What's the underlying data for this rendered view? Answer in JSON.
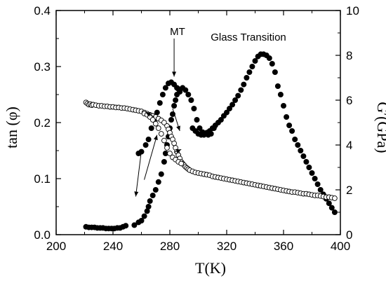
{
  "chart_data": {
    "type": "scatter",
    "xlabel": "T(K)",
    "ylabel_left": "tan (φ)",
    "ylabel_right": "G′(GPa)",
    "xlim": [
      200,
      400
    ],
    "ylim_left": [
      0,
      0.4
    ],
    "ylim_right": [
      0,
      10
    ],
    "xticks": [
      "200",
      "240",
      "280",
      "320",
      "360",
      "400"
    ],
    "yticks_left": [
      "0.0",
      "0.1",
      "0.2",
      "0.3",
      "0.4"
    ],
    "yticks_right": [
      "0",
      "2",
      "4",
      "6",
      "8",
      "10"
    ],
    "annotations": [
      {
        "text": "MT",
        "x": 283,
        "y": 0.35
      },
      {
        "text": "Glass Transition",
        "x": 290,
        "y": 0.345
      }
    ],
    "series": [
      {
        "marker": "filled-circle",
        "axis": "left",
        "points": [
          [
            221,
            0.014
          ],
          [
            223,
            0.013
          ],
          [
            225,
            0.013
          ],
          [
            227,
            0.013
          ],
          [
            229,
            0.012
          ],
          [
            231,
            0.012
          ],
          [
            233,
            0.012
          ],
          [
            235,
            0.011
          ],
          [
            237,
            0.011
          ],
          [
            239,
            0.011
          ],
          [
            241,
            0.011
          ],
          [
            243,
            0.012
          ],
          [
            245,
            0.012
          ],
          [
            247,
            0.014
          ],
          [
            249,
            0.016
          ],
          [
            255,
            0.017
          ],
          [
            258,
            0.022
          ],
          [
            260,
            0.025
          ],
          [
            262,
            0.033
          ],
          [
            264,
            0.042
          ],
          [
            265,
            0.05
          ],
          [
            266,
            0.06
          ],
          [
            268,
            0.07
          ],
          [
            270,
            0.08
          ],
          [
            272,
            0.094
          ],
          [
            274,
            0.108
          ],
          [
            276,
            0.13
          ],
          [
            277,
            0.145
          ],
          [
            278,
            0.16
          ],
          [
            279,
            0.175
          ],
          [
            280,
            0.19
          ],
          [
            281,
            0.205
          ],
          [
            282,
            0.215
          ],
          [
            283,
            0.23
          ],
          [
            284,
            0.24
          ],
          [
            285,
            0.25
          ],
          [
            286,
            0.26
          ],
          [
            258,
            0.145
          ],
          [
            260,
            0.148
          ],
          [
            263,
            0.16
          ],
          [
            265,
            0.17
          ],
          [
            267,
            0.19
          ],
          [
            269,
            0.205
          ],
          [
            271,
            0.218
          ],
          [
            273,
            0.235
          ],
          [
            275,
            0.25
          ],
          [
            277,
            0.262
          ],
          [
            279,
            0.27
          ],
          [
            281,
            0.272
          ],
          [
            283,
            0.268
          ],
          [
            285,
            0.262
          ],
          [
            287,
            0.255
          ],
          [
            289,
            0.262
          ],
          [
            291,
            0.258
          ],
          [
            293,
            0.25
          ],
          [
            295,
            0.24
          ],
          [
            297,
            0.225
          ],
          [
            299,
            0.205
          ],
          [
            301,
            0.19
          ],
          [
            303,
            0.183
          ],
          [
            305,
            0.18
          ],
          [
            307,
            0.178
          ],
          [
            309,
            0.18
          ],
          [
            311,
            0.19
          ],
          [
            296,
            0.19
          ],
          [
            298,
            0.185
          ],
          [
            300,
            0.18
          ],
          [
            302,
            0.178
          ],
          [
            304,
            0.178
          ],
          [
            306,
            0.182
          ],
          [
            308,
            0.185
          ],
          [
            310,
            0.19
          ],
          [
            312,
            0.195
          ],
          [
            314,
            0.2
          ],
          [
            316,
            0.205
          ],
          [
            318,
            0.212
          ],
          [
            320,
            0.218
          ],
          [
            322,
            0.225
          ],
          [
            324,
            0.232
          ],
          [
            326,
            0.24
          ],
          [
            328,
            0.248
          ],
          [
            330,
            0.258
          ],
          [
            332,
            0.268
          ],
          [
            334,
            0.28
          ],
          [
            336,
            0.29
          ],
          [
            338,
            0.3
          ],
          [
            340,
            0.31
          ],
          [
            342,
            0.318
          ],
          [
            344,
            0.322
          ],
          [
            346,
            0.322
          ],
          [
            348,
            0.32
          ],
          [
            350,
            0.315
          ],
          [
            352,
            0.305
          ],
          [
            354,
            0.29
          ],
          [
            356,
            0.265
          ],
          [
            358,
            0.25
          ],
          [
            360,
            0.23
          ],
          [
            362,
            0.21
          ],
          [
            364,
            0.195
          ],
          [
            366,
            0.185
          ],
          [
            368,
            0.17
          ],
          [
            370,
            0.16
          ],
          [
            372,
            0.15
          ],
          [
            374,
            0.14
          ],
          [
            376,
            0.13
          ],
          [
            378,
            0.12
          ],
          [
            380,
            0.11
          ],
          [
            382,
            0.1
          ],
          [
            384,
            0.09
          ],
          [
            386,
            0.08
          ],
          [
            388,
            0.072
          ],
          [
            390,
            0.064
          ],
          [
            392,
            0.056
          ],
          [
            394,
            0.048
          ],
          [
            396,
            0.04
          ]
        ]
      },
      {
        "marker": "open-circle",
        "axis": "left",
        "points": [
          [
            221,
            0.236
          ],
          [
            222,
            0.234
          ],
          [
            223,
            0.232
          ],
          [
            224,
            0.233
          ],
          [
            225,
            0.231
          ],
          [
            226,
            0.232
          ],
          [
            228,
            0.231
          ],
          [
            230,
            0.23
          ],
          [
            232,
            0.23
          ],
          [
            234,
            0.229
          ],
          [
            236,
            0.229
          ],
          [
            238,
            0.228
          ],
          [
            240,
            0.228
          ],
          [
            242,
            0.227
          ],
          [
            244,
            0.227
          ],
          [
            246,
            0.226
          ],
          [
            248,
            0.226
          ],
          [
            250,
            0.225
          ],
          [
            252,
            0.224
          ],
          [
            254,
            0.223
          ],
          [
            256,
            0.222
          ],
          [
            258,
            0.221
          ],
          [
            260,
            0.22
          ],
          [
            262,
            0.218
          ],
          [
            264,
            0.216
          ],
          [
            266,
            0.214
          ],
          [
            268,
            0.212
          ],
          [
            270,
            0.21
          ],
          [
            272,
            0.207
          ],
          [
            274,
            0.204
          ],
          [
            276,
            0.2
          ],
          [
            278,
            0.194
          ],
          [
            279,
            0.188
          ],
          [
            280,
            0.182
          ],
          [
            281,
            0.175
          ],
          [
            282,
            0.17
          ],
          [
            283,
            0.163
          ],
          [
            284,
            0.155
          ],
          [
            285,
            0.148
          ],
          [
            286,
            0.142
          ],
          [
            287,
            0.136
          ],
          [
            288,
            0.13
          ],
          [
            289,
            0.127
          ],
          [
            290,
            0.124
          ],
          [
            291,
            0.121
          ],
          [
            292,
            0.119
          ],
          [
            293,
            0.117
          ],
          [
            294,
            0.115
          ],
          [
            296,
            0.113
          ],
          [
            298,
            0.111
          ],
          [
            300,
            0.11
          ],
          [
            302,
            0.109
          ],
          [
            304,
            0.108
          ],
          [
            306,
            0.107
          ],
          [
            308,
            0.106
          ],
          [
            310,
            0.104
          ],
          [
            312,
            0.103
          ],
          [
            314,
            0.102
          ],
          [
            316,
            0.101
          ],
          [
            318,
            0.1
          ],
          [
            320,
            0.099
          ],
          [
            322,
            0.098
          ],
          [
            324,
            0.097
          ],
          [
            326,
            0.096
          ],
          [
            328,
            0.095
          ],
          [
            330,
            0.094
          ],
          [
            332,
            0.093
          ],
          [
            334,
            0.092
          ],
          [
            336,
            0.091
          ],
          [
            338,
            0.09
          ],
          [
            340,
            0.089
          ],
          [
            342,
            0.088
          ],
          [
            344,
            0.087
          ],
          [
            346,
            0.086
          ],
          [
            348,
            0.085
          ],
          [
            350,
            0.084
          ],
          [
            352,
            0.083
          ],
          [
            354,
            0.082
          ],
          [
            356,
            0.081
          ],
          [
            358,
            0.08
          ],
          [
            360,
            0.079
          ],
          [
            362,
            0.078
          ],
          [
            364,
            0.077
          ],
          [
            366,
            0.076
          ],
          [
            368,
            0.076
          ],
          [
            370,
            0.075
          ],
          [
            372,
            0.074
          ],
          [
            374,
            0.073
          ],
          [
            376,
            0.073
          ],
          [
            378,
            0.072
          ],
          [
            380,
            0.071
          ],
          [
            382,
            0.07
          ],
          [
            384,
            0.07
          ],
          [
            386,
            0.069
          ],
          [
            388,
            0.068
          ],
          [
            390,
            0.067
          ],
          [
            392,
            0.067
          ],
          [
            394,
            0.066
          ],
          [
            396,
            0.065
          ],
          [
            262,
            0.216
          ],
          [
            264,
            0.214
          ],
          [
            266,
            0.21
          ],
          [
            268,
            0.205
          ],
          [
            270,
            0.198
          ],
          [
            272,
            0.19
          ],
          [
            274,
            0.18
          ],
          [
            276,
            0.168
          ],
          [
            278,
            0.155
          ],
          [
            280,
            0.145
          ],
          [
            282,
            0.138
          ],
          [
            284,
            0.134
          ],
          [
            286,
            0.13
          ],
          [
            288,
            0.127
          ]
        ]
      }
    ],
    "arrows": [
      {
        "from": [
          283,
          0.35
        ],
        "to": [
          283,
          0.282
        ]
      },
      {
        "from": [
          269,
          0.21
        ],
        "to": [
          263,
          0.218
        ]
      },
      {
        "from": [
          260,
          0.15
        ],
        "to": [
          256,
          0.068
        ]
      },
      {
        "from": [
          262,
          0.098
        ],
        "to": [
          271,
          0.178
        ]
      },
      {
        "from": [
          282,
          0.225
        ],
        "to": [
          287,
          0.185
        ]
      },
      {
        "from": [
          283,
          0.147
        ],
        "to": [
          288,
          0.152
        ]
      }
    ]
  }
}
